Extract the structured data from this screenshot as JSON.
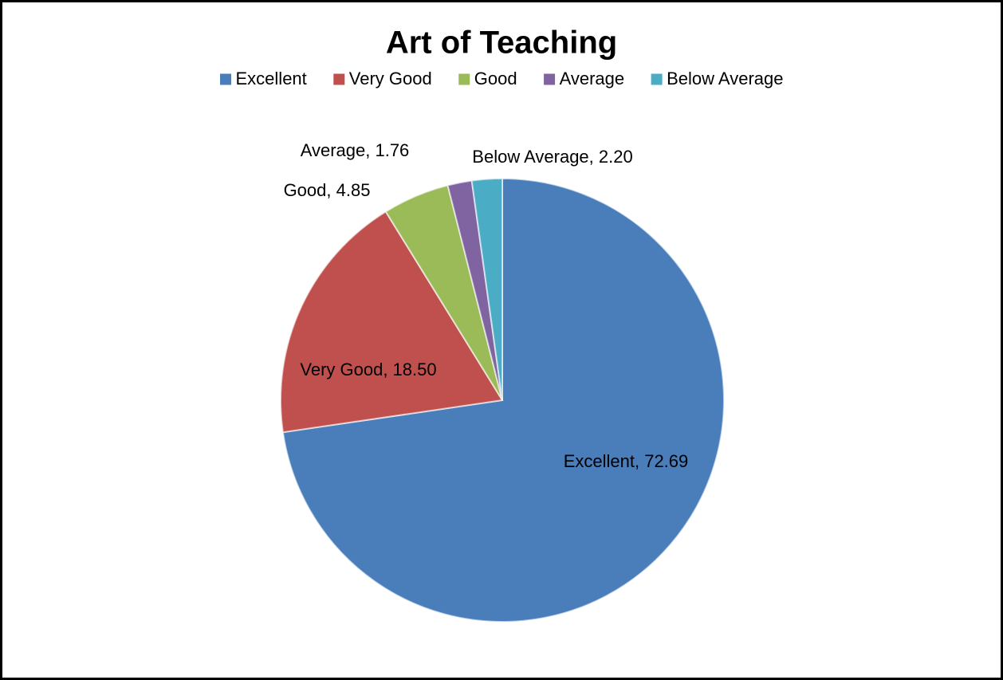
{
  "chart_data": {
    "type": "pie",
    "title": "Art of Teaching",
    "categories": [
      "Excellent",
      "Very Good",
      "Good",
      "Average",
      "Below Average"
    ],
    "values": [
      72.69,
      18.5,
      4.85,
      1.76,
      2.2
    ],
    "value_labels": [
      "Excellent, 72.69",
      "Very Good, 18.50",
      "Good, 4.85",
      "Average, 1.76",
      "Below Average, 2.20"
    ],
    "colors": [
      "#4a7ebb",
      "#c0504d",
      "#9bbb59",
      "#8064a2",
      "#4bacc6"
    ],
    "legend": "top"
  }
}
